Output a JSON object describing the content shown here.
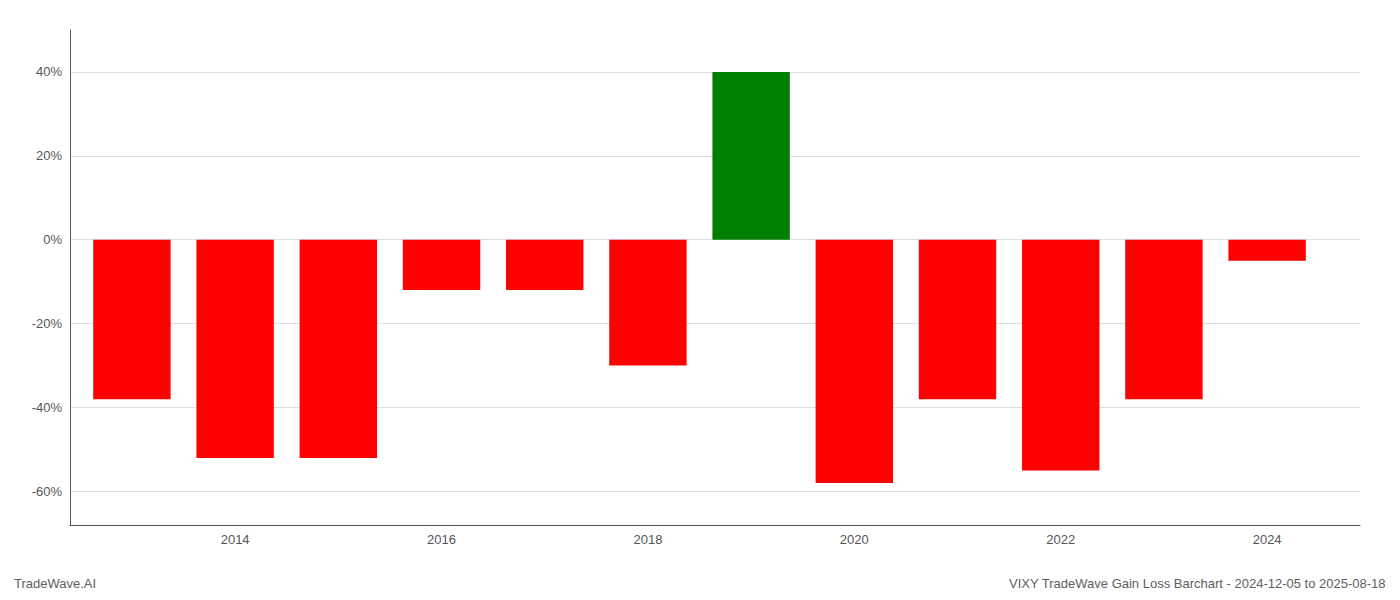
{
  "chart_data": {
    "type": "bar",
    "x": [
      2013,
      2014,
      2015,
      2016,
      2017,
      2018,
      2019,
      2020,
      2021,
      2022,
      2023,
      2024
    ],
    "values": [
      -38,
      -52,
      -52,
      -12,
      -12,
      -30,
      40,
      -58,
      -38,
      -55,
      -38,
      -5
    ],
    "colors": [
      "#ff0000",
      "#ff0000",
      "#ff0000",
      "#ff0000",
      "#ff0000",
      "#ff0000",
      "#008000",
      "#ff0000",
      "#ff0000",
      "#ff0000",
      "#ff0000",
      "#ff0000"
    ],
    "xlim": [
      2012.4,
      2024.9
    ],
    "xticks": [
      2014,
      2016,
      2018,
      2020,
      2022,
      2024
    ],
    "ylim": [
      -68,
      50
    ],
    "yticks": [
      {
        "value": -60,
        "label": "-60%"
      },
      {
        "value": -40,
        "label": "-40%"
      },
      {
        "value": -20,
        "label": "-20%"
      },
      {
        "value": 0,
        "label": "0%"
      },
      {
        "value": 20,
        "label": "20%"
      },
      {
        "value": 40,
        "label": "40%"
      }
    ],
    "grid": true,
    "annotations": [
      "TradeWave.AI",
      "VIXY TradeWave Gain Loss Barchart - 2024-12-05 to 2025-08-18"
    ]
  }
}
